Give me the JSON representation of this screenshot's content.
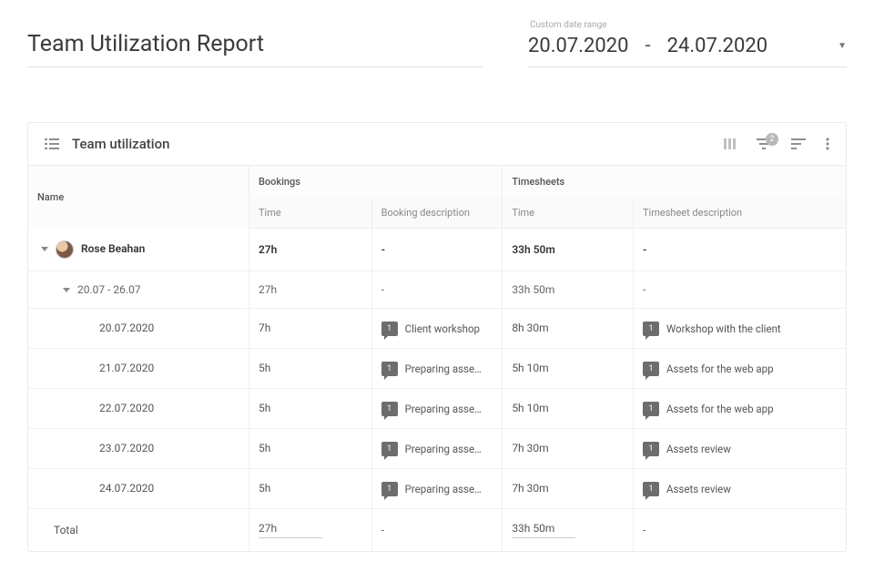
{
  "report": {
    "title": "Team Utilization Report",
    "date_range": {
      "label": "Custom date range",
      "start": "20.07.2020",
      "end": "24.07.2020",
      "separator": "-"
    }
  },
  "panel": {
    "title": "Team utilization",
    "filter_count": "2",
    "columns": {
      "name": "Name",
      "bookings": "Bookings",
      "timesheets": "Timesheets",
      "time": "Time",
      "booking_description": "Booking description",
      "timesheet_description": "Timesheet description"
    }
  },
  "person": {
    "name": "Rose Beahan",
    "booking_time": "27h",
    "booking_desc": "-",
    "timesheet_time": "33h 50m",
    "timesheet_desc": "-"
  },
  "week": {
    "label": "20.07 - 26.07",
    "booking_time": "27h",
    "booking_desc": "-",
    "timesheet_time": "33h 50m",
    "timesheet_desc": "-"
  },
  "days": [
    {
      "date": "20.07.2020",
      "booking_time": "7h",
      "booking_count": "1",
      "booking_desc": "Client workshop",
      "timesheet_time": "8h 30m",
      "timesheet_count": "1",
      "timesheet_desc": "Workshop with the client"
    },
    {
      "date": "21.07.2020",
      "booking_time": "5h",
      "booking_count": "1",
      "booking_desc": "Preparing asse…",
      "timesheet_time": "5h 10m",
      "timesheet_count": "1",
      "timesheet_desc": "Assets for the web app"
    },
    {
      "date": "22.07.2020",
      "booking_time": "5h",
      "booking_count": "1",
      "booking_desc": "Preparing asse…",
      "timesheet_time": "5h 10m",
      "timesheet_count": "1",
      "timesheet_desc": "Assets for the web app"
    },
    {
      "date": "23.07.2020",
      "booking_time": "5h",
      "booking_count": "1",
      "booking_desc": "Preparing asse…",
      "timesheet_time": "7h 30m",
      "timesheet_count": "1",
      "timesheet_desc": "Assets review"
    },
    {
      "date": "24.07.2020",
      "booking_time": "5h",
      "booking_count": "1",
      "booking_desc": "Preparing asse…",
      "timesheet_time": "7h 30m",
      "timesheet_count": "1",
      "timesheet_desc": "Assets review"
    }
  ],
  "total": {
    "label": "Total",
    "booking_time": "27h",
    "booking_desc": "-",
    "timesheet_time": "33h 50m",
    "timesheet_desc": "-"
  },
  "style": {
    "border_color": "#ebebeb",
    "header_bg": "#fcfcfc",
    "text_color": "#555",
    "badge_bg": "#6d6d6d"
  }
}
